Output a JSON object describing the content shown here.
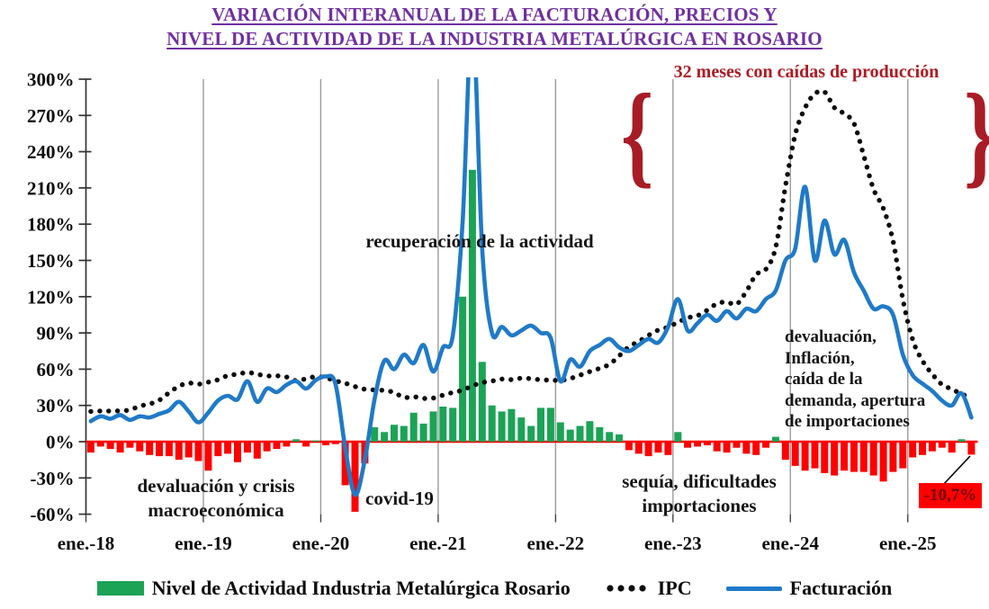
{
  "title": {
    "line1": "VARIACIÓN INTERANUAL DE LA FACTURACIÓN, PRECIOS Y",
    "line2": "NIVEL DE ACTIVIDAD DE LA INDUSTRIA METALÚRGICA EN ROSARIO"
  },
  "annotations": {
    "meses_caidas": "32 meses con caídas de producción",
    "brace_left": "{",
    "brace_right": "}",
    "recuperacion": "recuperación de la actividad",
    "devaluacion_crisis": [
      "devaluación y crisis",
      "macroeconómica"
    ],
    "covid": "covid-19",
    "sequia": [
      "sequía, dificultades",
      "importaciones"
    ],
    "devaluacion_2024": [
      "devaluación,",
      "Inflación,",
      "caída de la",
      "demanda, apertura",
      "de importaciones"
    ],
    "last_value_label": "-10,7%"
  },
  "legend": {
    "activity": "Nivel de Actividad Industria Metalúrgica Rosario",
    "ipc": "IPC",
    "facturacion": "Facturación"
  },
  "colors": {
    "title_purple": "#7030A0",
    "annotation_red": "#B11A21",
    "bar_positive": "#1BA356",
    "bar_negative": "#FF0000",
    "line_blue": "#1F7AC8",
    "ipc_black": "#0d0d0d",
    "gridline_gray": "#9b9b9b"
  },
  "chart_data": {
    "type": "combo (bar + dotted line + line)",
    "frequency": "monthly",
    "start": "ene.-18",
    "end": "jul.-25",
    "x_tick_labels": [
      "ene.-18",
      "ene.-19",
      "ene.-20",
      "ene.-21",
      "ene.-22",
      "ene.-23",
      "ene.-24",
      "ene.-25"
    ],
    "y_ticks": [
      300,
      270,
      240,
      210,
      180,
      150,
      120,
      90,
      60,
      30,
      0,
      -30,
      -60
    ],
    "y_tick_labels": [
      "300%",
      "270%",
      "240%",
      "210%",
      "180%",
      "150%",
      "120%",
      "90%",
      "60%",
      "30%",
      "0%",
      "-30%",
      "-60%"
    ],
    "ylim": [
      -60,
      300
    ],
    "grid": "vertical-only",
    "legend_position": "bottom",
    "series": [
      {
        "name": "Nivel de Actividad Industria Metalúrgica Rosario",
        "type": "bar",
        "values": [
          -9,
          -4,
          -6,
          -9,
          -5,
          -8,
          -11,
          -12,
          -12,
          -15,
          -13,
          -16,
          -24,
          -12,
          -10,
          -17,
          -9,
          -14,
          -8,
          -6,
          -4,
          2,
          -4,
          1,
          -3,
          -2,
          -36,
          -58,
          -18,
          12,
          8,
          14,
          13,
          24,
          15,
          25,
          29,
          28,
          120,
          225,
          66,
          30,
          25,
          27,
          20,
          13,
          28,
          28,
          16,
          10,
          13,
          17,
          12,
          8,
          6,
          -7,
          -10,
          -12,
          -9,
          -11,
          8,
          -5,
          -4,
          -3,
          -8,
          -9,
          -5,
          -10,
          -11,
          -5,
          4,
          -15,
          -20,
          -24,
          -22,
          -26,
          -28,
          -24,
          -25,
          -25,
          -28,
          -33,
          -25,
          -22,
          -13,
          -11,
          -8,
          -5,
          -9,
          2,
          -10.7
        ]
      },
      {
        "name": "IPC",
        "type": "dotted-line",
        "values": [
          25,
          25.4,
          25.4,
          25.5,
          26.3,
          29.5,
          31.2,
          34.4,
          40.5,
          45.9,
          48.5,
          47.6,
          49.3,
          51.3,
          54.7,
          55.8,
          57.3,
          55.8,
          54.4,
          54.5,
          53.5,
          50.5,
          52.1,
          53.8,
          52.9,
          50.3,
          48.4,
          45.6,
          43.4,
          42.8,
          42.4,
          40.7,
          36.6,
          37.2,
          35.8,
          36.1,
          38.5,
          40.7,
          42.6,
          46.3,
          48.8,
          50.2,
          51.8,
          51.4,
          52.5,
          52.1,
          51.2,
          50.9,
          50.7,
          52.3,
          55.1,
          58,
          60.7,
          64,
          71,
          78.5,
          83,
          88,
          92.4,
          94.8,
          98.8,
          102.5,
          104.3,
          108.8,
          114.2,
          115.6,
          113.8,
          124.4,
          138.3,
          142.7,
          160.9,
          211.4,
          254.2,
          276.2,
          287.9,
          289.4,
          276.4,
          271.5,
          263.4,
          236.7,
          209,
          193,
          166,
          117.8,
          84.5,
          66.9,
          55.9,
          47.3,
          43.5,
          39.4,
          36.6
        ]
      },
      {
        "name": "Facturación",
        "type": "line",
        "values": [
          17,
          21,
          19,
          22,
          18,
          21,
          20,
          23,
          26,
          33,
          25,
          16,
          24,
          34,
          38,
          35,
          50,
          33,
          44,
          41,
          47,
          50,
          44,
          51,
          54,
          48,
          -5,
          -44,
          -15,
          35,
          67,
          60,
          72,
          65,
          80,
          58,
          78,
          88,
          182,
          350,
          160,
          90,
          95,
          88,
          92,
          96,
          90,
          86,
          50,
          68,
          62,
          75,
          80,
          85,
          78,
          75,
          80,
          85,
          82,
          95,
          118,
          92,
          98,
          105,
          100,
          108,
          102,
          110,
          108,
          118,
          125,
          150,
          160,
          211,
          150,
          183,
          155,
          167,
          140,
          125,
          110,
          112,
          105,
          72,
          55,
          48,
          42,
          34,
          30,
          40,
          20
        ]
      }
    ],
    "last_bar_label": "-10,7%"
  }
}
